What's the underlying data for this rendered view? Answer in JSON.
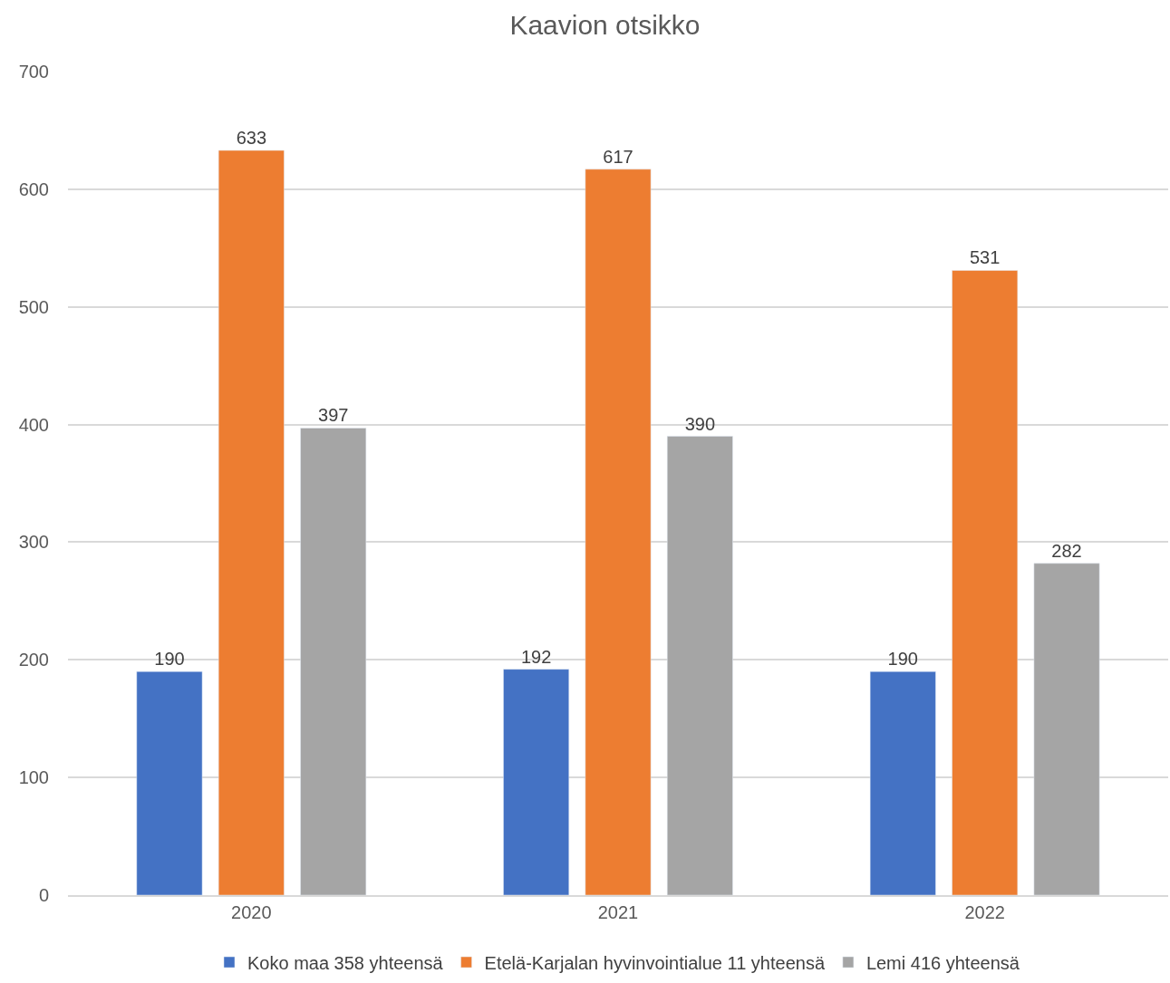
{
  "chart_data": {
    "type": "bar",
    "title": "Kaavion otsikko",
    "categories": [
      "2020",
      "2021",
      "2022"
    ],
    "series": [
      {
        "name": "Koko maa 358 yhteensä",
        "color": "#4472c4",
        "values": [
          190,
          192,
          190
        ]
      },
      {
        "name": "Etelä-Karjalan hyvinvointialue 11 yhteensä",
        "color": "#ed7d31",
        "values": [
          633,
          617,
          531
        ]
      },
      {
        "name": "Lemi 416 yhteensä",
        "color": "#a5a5a5",
        "values": [
          397,
          390,
          282
        ]
      }
    ],
    "ylim": [
      0,
      700
    ],
    "yticks": [
      0,
      100,
      200,
      300,
      400,
      500,
      600,
      700
    ],
    "grid": "y",
    "legend": "bottom",
    "data_labels": true
  }
}
